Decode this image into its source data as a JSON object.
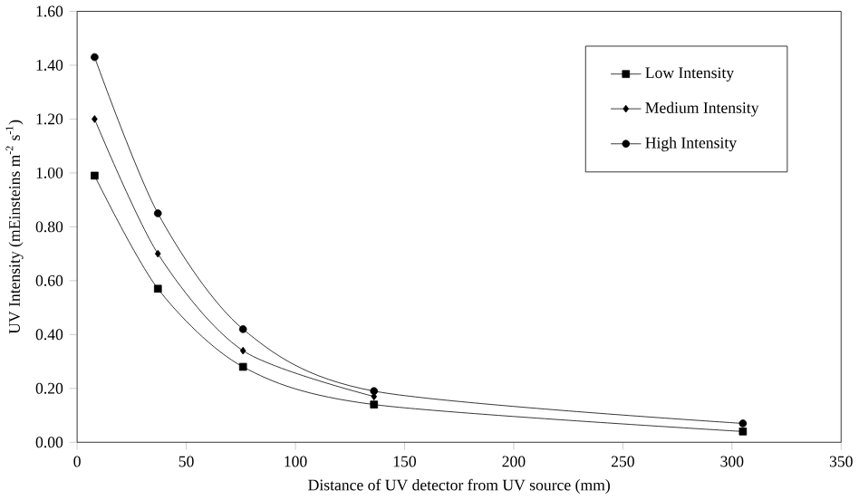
{
  "chart_data": {
    "type": "line",
    "xlabel": "Distance of UV detector from UV source (mm)",
    "ylabel": "UV Intensity (mEinsteins m$^{-2}$ s$^{-1}$)",
    "x": [
      8,
      37,
      76,
      136,
      305
    ],
    "series": [
      {
        "name": "Low Intensity",
        "color": "#000000",
        "marker": "square",
        "values": [
          0.99,
          0.57,
          0.28,
          0.14,
          0.04
        ]
      },
      {
        "name": "Medium Intensity",
        "color": "#000000",
        "marker": "diamond",
        "values": [
          1.2,
          0.7,
          0.34,
          0.17,
          null
        ]
      },
      {
        "name": "High Intensity",
        "color": "#000000",
        "marker": "circle",
        "values": [
          1.43,
          0.85,
          0.42,
          0.19,
          0.07
        ]
      }
    ],
    "xlim": [
      0,
      350
    ],
    "xticks": [
      0,
      50,
      100,
      150,
      200,
      250,
      300,
      350
    ],
    "ylim": [
      0,
      1.6
    ],
    "yticks": [
      {
        "value": 0,
        "label": "0.00"
      },
      {
        "value": 0.2,
        "label": "0.20"
      },
      {
        "value": 0.4,
        "label": "0.40"
      },
      {
        "value": 0.6,
        "label": "0.60"
      },
      {
        "value": 0.8,
        "label": "0.80"
      },
      {
        "value": 1.0,
        "label": "1.00"
      },
      {
        "value": 1.2,
        "label": "1.20"
      },
      {
        "value": 1.4,
        "label": "1.40"
      },
      {
        "value": 1.6,
        "label": "1.60"
      }
    ],
    "grid": false,
    "legend": "top right",
    "line_style": "solid"
  }
}
